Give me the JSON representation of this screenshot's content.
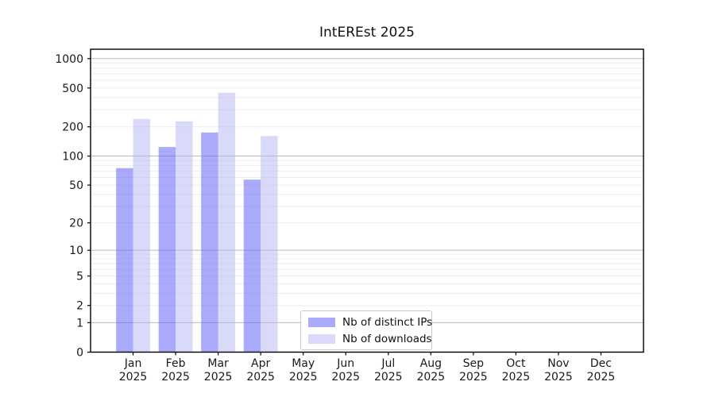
{
  "chart_data": {
    "type": "bar",
    "title": "IntEREst 2025",
    "x_axis": {
      "months": [
        "Jan",
        "Feb",
        "Mar",
        "Apr",
        "May",
        "Jun",
        "Jul",
        "Aug",
        "Sep",
        "Oct",
        "Nov",
        "Dec"
      ],
      "year": "2025"
    },
    "y_axis": {
      "scale": "log10(1+y)",
      "ylim": [
        0,
        1250
      ],
      "ticks": [
        0,
        1,
        2,
        5,
        10,
        20,
        50,
        100,
        200,
        500,
        1000
      ],
      "major_gridlines": [
        1,
        10,
        100,
        1000
      ],
      "minor_gridlines": [
        2,
        3,
        4,
        5,
        6,
        7,
        8,
        9,
        20,
        30,
        40,
        50,
        60,
        70,
        80,
        90,
        200,
        300,
        400,
        500,
        600,
        700,
        800,
        900
      ]
    },
    "series": [
      {
        "name": "Nb of distinct IPs",
        "color": "rgba(100,100,245,0.55)",
        "values": [
          75,
          124,
          175,
          57,
          0,
          0,
          0,
          0,
          0,
          0,
          0,
          0
        ]
      },
      {
        "name": "Nb of downloads",
        "color": "rgba(180,180,245,0.5)",
        "values": [
          241,
          228,
          447,
          161,
          0,
          0,
          0,
          0,
          0,
          0,
          0,
          0
        ]
      }
    ],
    "legend": {
      "labels": [
        "Nb of distinct IPs",
        "Nb of downloads"
      ],
      "position": "lower center"
    },
    "colors": {
      "background": "#ffffff",
      "grid_minor": "#eeeeee",
      "grid_major": "#b8b8b8",
      "spine": "#000000",
      "text": "#1a1a1a"
    }
  }
}
